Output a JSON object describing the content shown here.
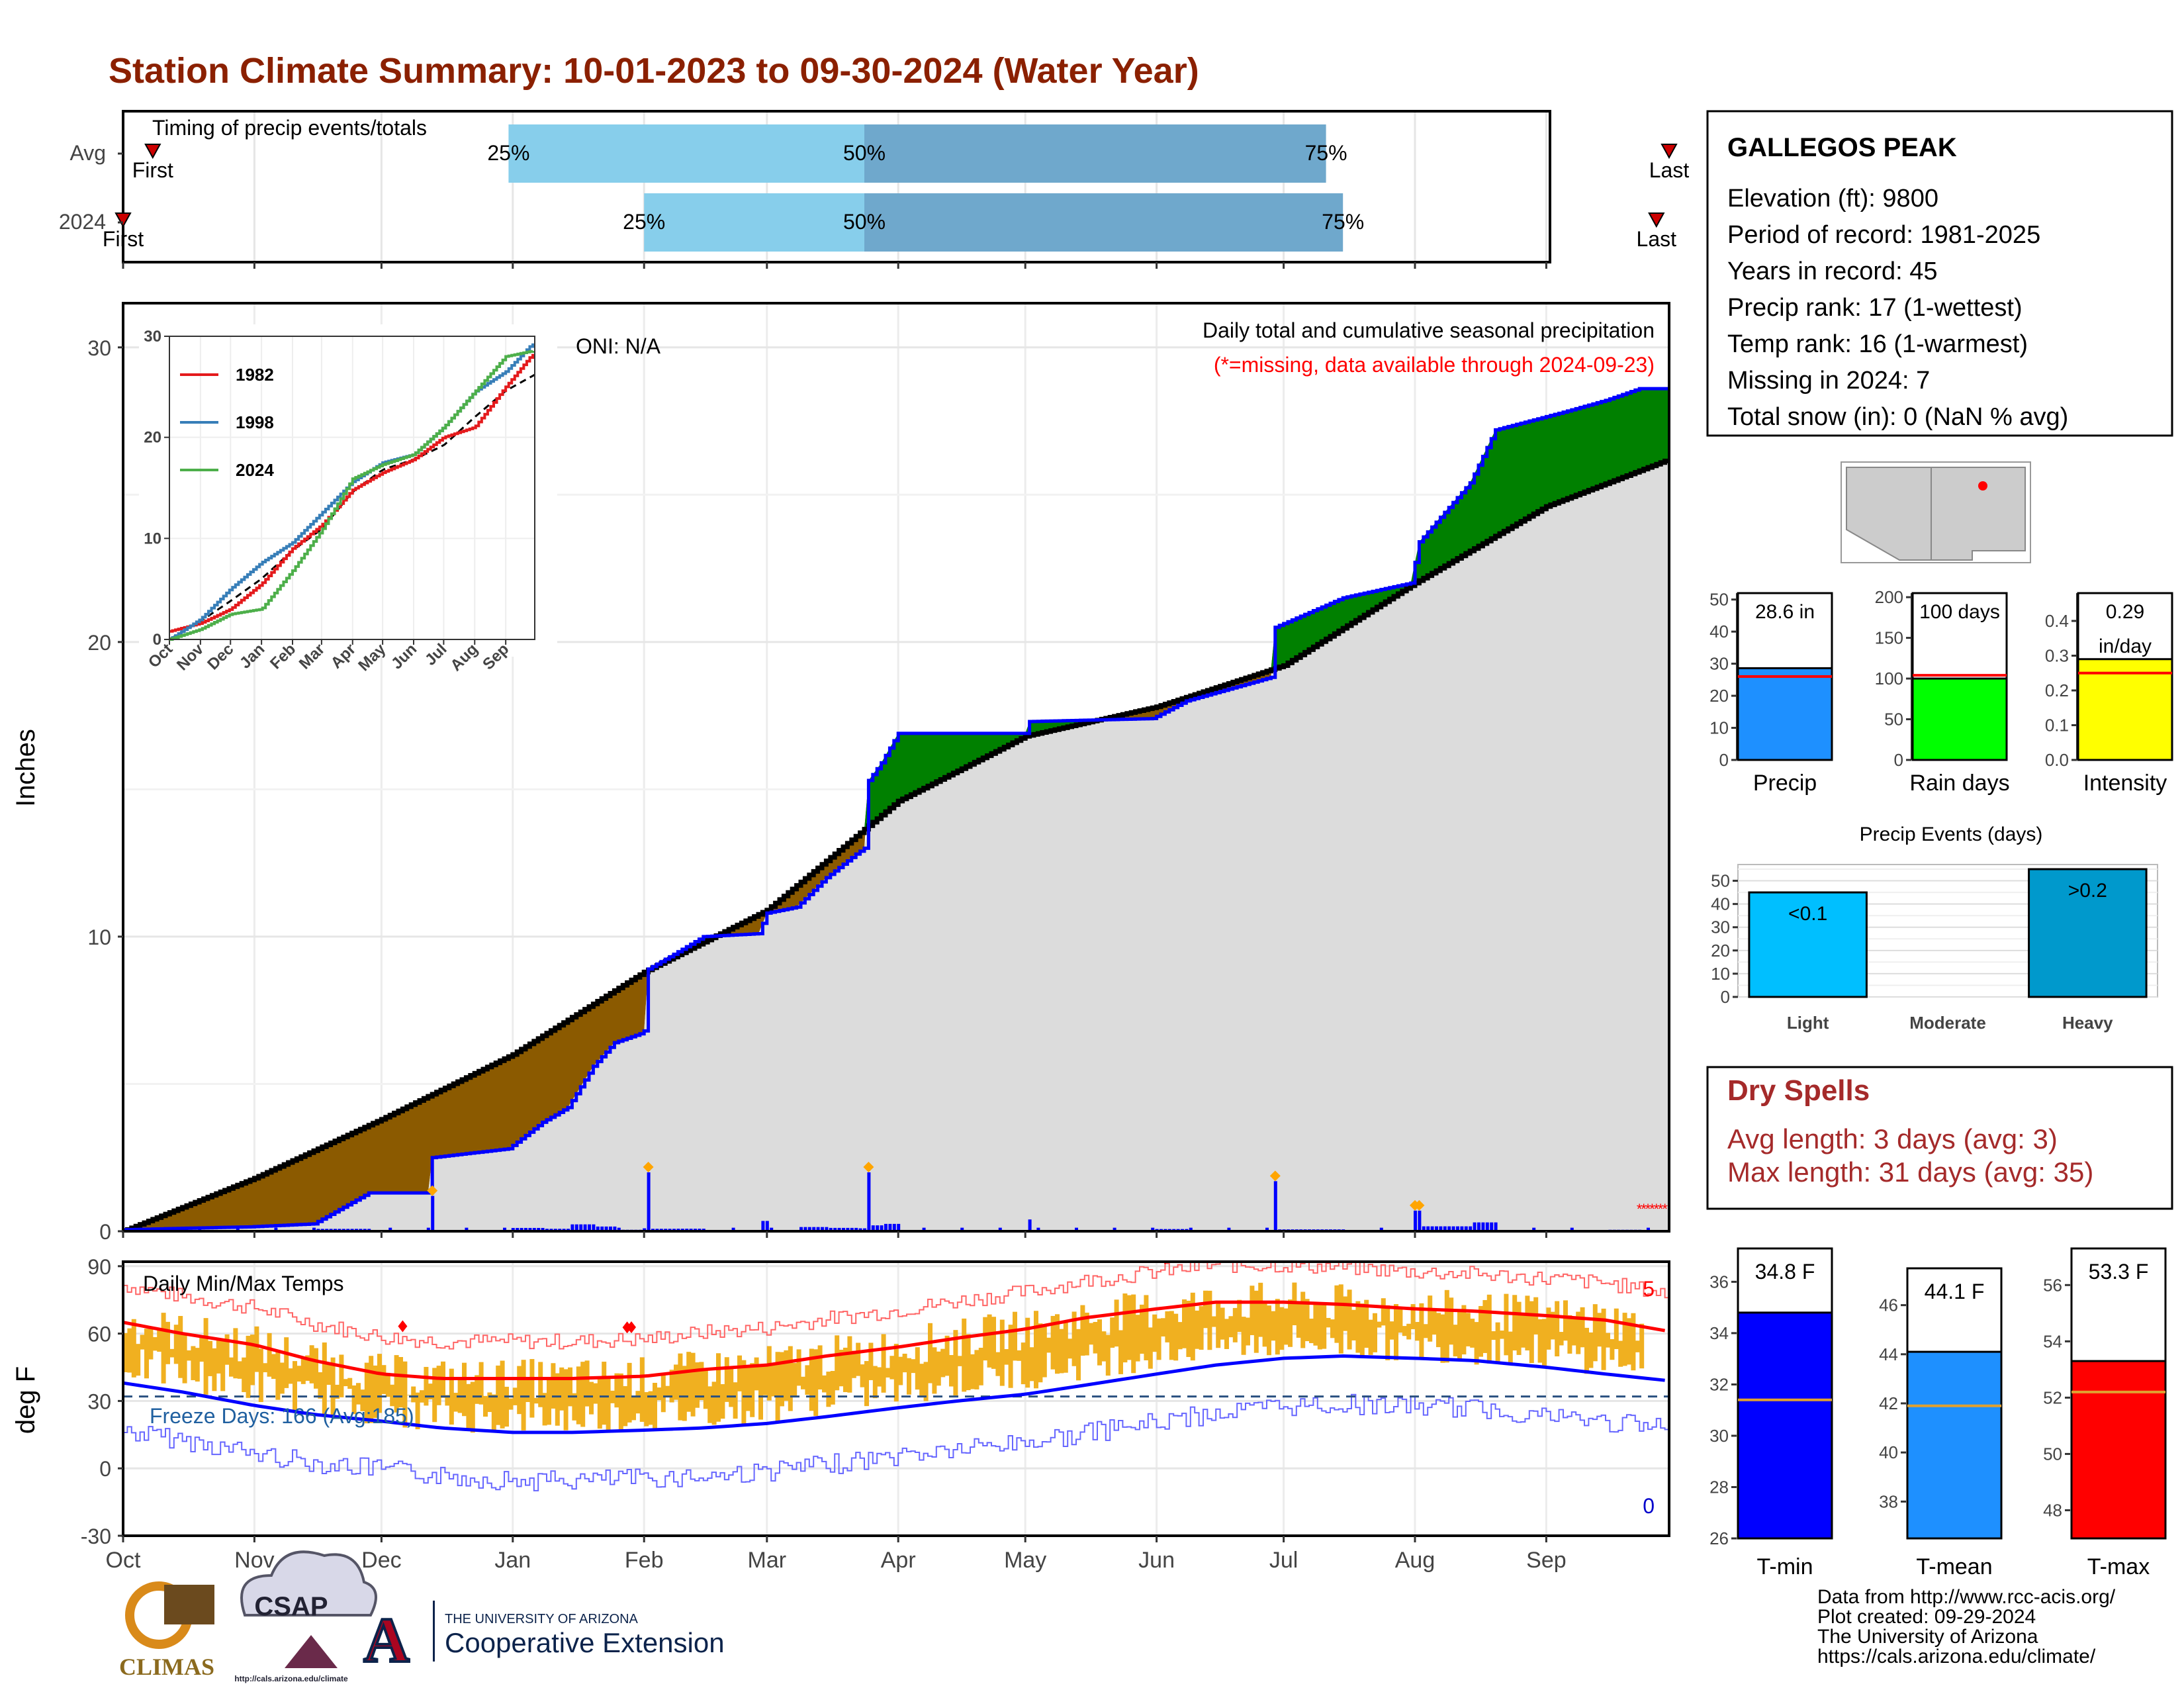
{
  "title": "Station Climate Summary: 10-01-2023 to 09-30-2024 (Water Year)",
  "colors": {
    "title": "#8b2000",
    "light_blue": "#87ceeb",
    "mid_blue": "#6fa8cc",
    "surplus": "#008000",
    "deficit": "#8b5a00",
    "precip_bar": "#0000ff",
    "normal_fill": "#dcdcdc",
    "temp_band": "#f0b020",
    "max_line": "#ff0000",
    "min_line": "#0000ff",
    "dry_spells": "#a52a2a"
  },
  "timing": {
    "title": "Timing of precip events/totals",
    "rows": [
      {
        "label": "Avg",
        "p25": "25%",
        "p50": "50%",
        "p75": "75%",
        "first": "First",
        "last": "Last",
        "first_date": "2023-10-08",
        "p25_date": "2023-12-31",
        "p50_date": "2024-03-24",
        "p75_date": "2024-07-11",
        "last_date": "2024-09-30"
      },
      {
        "label": "2024",
        "p25": "25%",
        "p50": "50%",
        "p75": "75%",
        "first": "First",
        "last": "Last",
        "first_date": "2023-10-01",
        "p25_date": "2024-02-01",
        "p50_date": "2024-03-24",
        "p75_date": "2024-07-15",
        "last_date": "2024-09-27"
      }
    ]
  },
  "precip": {
    "ylabel": "Inches",
    "oni": "ONI: N/A",
    "subtitle": "Daily total and cumulative seasonal precipitation",
    "missing_note": "(*=missing, data available through 2024-09-23)",
    "y_ticks": [
      "0",
      "10",
      "20",
      "30"
    ],
    "x_ticks": [
      "Oct",
      "Nov",
      "Dec",
      "Jan",
      "Feb",
      "Mar",
      "Apr",
      "May",
      "Jun",
      "Jul",
      "Aug",
      "Sep"
    ],
    "inset": {
      "y_ticks": [
        "0",
        "10",
        "20",
        "30"
      ],
      "x_ticks": [
        "Oct",
        "Nov",
        "Dec",
        "Jan",
        "Feb",
        "Mar",
        "Apr",
        "May",
        "Jun",
        "Jul",
        "Aug",
        "Sep"
      ],
      "legend": [
        {
          "name": "1982",
          "color": "#e41a1c"
        },
        {
          "name": "1998",
          "color": "#377eb8"
        },
        {
          "name": "2024",
          "color": "#4daf4a"
        }
      ]
    }
  },
  "temp": {
    "ylabel": "deg F",
    "title": "Daily Min/Max Temps",
    "freeze": "Freeze Days: 166 (Avg:185)",
    "record_high_count": "5",
    "record_low_count": "0",
    "y_ticks": [
      "90",
      "60",
      "30",
      "0",
      "-30"
    ],
    "x_ticks": [
      "Oct",
      "Nov",
      "Dec",
      "Jan",
      "Feb",
      "Mar",
      "Apr",
      "May",
      "Jun",
      "Jul",
      "Aug",
      "Sep"
    ]
  },
  "station": {
    "name": "GALLEGOS PEAK",
    "lines": [
      "Elevation (ft): 9800",
      "Period of record: 1981-2025",
      "Years in record: 45",
      "Precip rank: 17 (1-wettest)",
      "Temp rank: 16 (1-warmest)",
      "Missing in 2024: 7",
      "Total snow (in): 0 (NaN % avg)"
    ]
  },
  "summary_bars": [
    {
      "label": "Precip",
      "value_label": "28.6 in",
      "value": 28.6,
      "avg": 26,
      "ymax": 52,
      "ticks": [
        "0",
        "10",
        "20",
        "30",
        "40",
        "50"
      ],
      "tick_values": [
        0,
        10,
        20,
        30,
        40,
        50
      ],
      "color": "#1e90ff"
    },
    {
      "label": "Rain days",
      "value_label": "100 days",
      "value": 100,
      "avg": 104,
      "ymax": 205,
      "ticks": [
        "0",
        "50",
        "100",
        "150",
        "200"
      ],
      "tick_values": [
        0,
        50,
        100,
        150,
        200
      ],
      "color": "#00ff00"
    },
    {
      "label": "Intensity",
      "value_label": "0.29",
      "value_label2": "in/day",
      "value": 0.29,
      "avg": 0.25,
      "ymax": 0.48,
      "ticks": [
        "0.0",
        "0.1",
        "0.2",
        "0.3",
        "0.4"
      ],
      "tick_values": [
        0,
        0.1,
        0.2,
        0.3,
        0.4
      ],
      "color": "#ffff00"
    }
  ],
  "events": {
    "title": "Precip Events (days)",
    "ticks": [
      "0",
      "10",
      "20",
      "30",
      "40",
      "50"
    ],
    "tick_values": [
      0,
      10,
      20,
      30,
      40,
      50
    ],
    "ymax": 57,
    "bars": [
      {
        "category": "Light",
        "value": 45,
        "label": "<0.1",
        "color": "#00bfff"
      },
      {
        "category": "Moderate",
        "value": 0,
        "label": "",
        "color": "#1e90ff"
      },
      {
        "category": "Heavy",
        "value": 55,
        "label": ">0.2",
        "color": "#0099cc"
      }
    ]
  },
  "dry_spells": {
    "title": "Dry Spells",
    "avg": "Avg length: 3 days (avg: 3)",
    "max": "Max length: 31 days (avg: 35)"
  },
  "temp_bars": [
    {
      "label": "T-min",
      "value_label": "34.8 F",
      "value": 34.8,
      "avg": 31.4,
      "ymin": 26,
      "ymax": 37.3,
      "ticks": [
        "26",
        "28",
        "30",
        "32",
        "34",
        "36"
      ],
      "tick_values": [
        26,
        28,
        30,
        32,
        34,
        36
      ],
      "color": "#0000ff"
    },
    {
      "label": "T-mean",
      "value_label": "44.1 F",
      "value": 44.1,
      "avg": 41.9,
      "ymin": 36.5,
      "ymax": 47.5,
      "ticks": [
        "38",
        "40",
        "42",
        "44",
        "46"
      ],
      "tick_values": [
        38,
        40,
        42,
        44,
        46
      ],
      "color": "#1e90ff"
    },
    {
      "label": "T-max",
      "value_label": "53.3 F",
      "value": 53.3,
      "avg": 52.2,
      "ymin": 47,
      "ymax": 57.3,
      "ticks": [
        "48",
        "50",
        "52",
        "54",
        "56"
      ],
      "tick_values": [
        48,
        50,
        52,
        54,
        56
      ],
      "color": "#ff0000"
    }
  ],
  "footer": {
    "logos": {
      "climas": "CLIMAS",
      "csap": "CSAP",
      "csap_url": "http://cals.arizona.edu/climate",
      "ua_top": "THE UNIVERSITY OF ARIZONA",
      "ua_bottom": "Cooperative Extension"
    },
    "credits": [
      "Data from http://www.rcc-acis.org/",
      "Plot created: 09-29-2024",
      "The University of Arizona",
      "https://cals.arizona.edu/climate/"
    ]
  },
  "chart_data": [
    {
      "type": "bar",
      "title": "Timing of precip events/totals",
      "categories": [
        "Avg",
        "2024"
      ],
      "series": [
        {
          "name": "25%",
          "values": [
            "2023-12-31",
            "2024-02-01"
          ]
        },
        {
          "name": "50%",
          "values": [
            "2024-03-24",
            "2024-03-24"
          ]
        },
        {
          "name": "75%",
          "values": [
            "2024-07-11",
            "2024-07-15"
          ]
        }
      ]
    },
    {
      "type": "area",
      "title": "Daily total and cumulative seasonal precipitation",
      "ylabel": "Inches",
      "ylim": [
        0,
        31.5
      ],
      "x_range": [
        "2023-10-01",
        "2024-09-30"
      ],
      "series": [
        {
          "name": "",
          "points": [
            [
              "2023-10-01",
              0.05
            ],
            [
              "2023-10-15",
              0.1
            ],
            [
              "2023-10-31",
              0.15
            ],
            [
              "2023-11-15",
              0.25
            ],
            [
              "2023-11-28",
              1.3
            ],
            [
              "2023-11-29",
              1.3
            ],
            [
              "2023-12-12",
              1.3
            ],
            [
              "2023-12-13",
              2.5
            ],
            [
              "2023-12-31",
              2.8
            ],
            [
              "2024-01-08",
              3.7
            ],
            [
              "2024-01-14",
              4.2
            ],
            [
              "2024-01-20",
              5.6
            ],
            [
              "2024-01-25",
              6.4
            ],
            [
              "2024-01-31",
              6.7
            ],
            [
              "2024-02-01",
              6.8
            ],
            [
              "2024-02-02",
              8.9
            ],
            [
              "2024-02-08",
              9.4
            ],
            [
              "2024-02-15",
              10.0
            ],
            [
              "2024-02-28",
              10.1
            ],
            [
              "2024-03-01",
              10.8
            ],
            [
              "2024-03-08",
              11.0
            ],
            [
              "2024-03-15",
              12.0
            ],
            [
              "2024-03-22",
              12.8
            ],
            [
              "2024-03-24",
              13.0
            ],
            [
              "2024-03-25",
              15.3
            ],
            [
              "2024-03-28",
              15.9
            ],
            [
              "2024-04-01",
              16.9
            ],
            [
              "2024-05-01",
              16.9
            ],
            [
              "2024-05-02",
              17.3
            ],
            [
              "2024-05-31",
              17.4
            ],
            [
              "2024-06-08",
              18.0
            ],
            [
              "2024-06-28",
              18.8
            ],
            [
              "2024-06-29",
              20.5
            ],
            [
              "2024-07-15",
              21.5
            ],
            [
              "2024-07-31",
              22.0
            ],
            [
              "2024-08-02",
              23.4
            ],
            [
              "2024-08-14",
              25.4
            ],
            [
              "2024-08-20",
              27.2
            ],
            [
              "2024-09-05",
              27.8
            ],
            [
              "2024-09-15",
              28.2
            ],
            [
              "2024-09-23",
              28.6
            ],
            [
              "2024-09-30",
              28.6
            ]
          ]
        },
        {
          "name": "",
          "points": [
            [
              "2023-10-01",
              0
            ],
            [
              "2023-11-01",
              1.8
            ],
            [
              "2023-12-01",
              3.8
            ],
            [
              "2024-01-01",
              6.0
            ],
            [
              "2024-02-01",
              8.8
            ],
            [
              "2024-03-01",
              10.9
            ],
            [
              "2024-04-01",
              14.6
            ],
            [
              "2024-05-01",
              16.8
            ],
            [
              "2024-06-01",
              17.8
            ],
            [
              "2024-07-01",
              19.2
            ],
            [
              "2024-08-01",
              22.0
            ],
            [
              "2024-09-01",
              24.6
            ],
            [
              "2024-09-30",
              26.2
            ]
          ]
        }
      ]
    },
    {
      "type": "line",
      "title": "",
      "ylim": [
        0,
        30
      ],
      "series": [
        {
          "name": "1982",
          "points": [
            [
              "10-01",
              0.8
            ],
            [
              "11-01",
              1.6
            ],
            [
              "12-01",
              3.0
            ],
            [
              "01-01",
              5.5
            ],
            [
              "02-01",
              9.0
            ],
            [
              "03-01",
              11.3
            ],
            [
              "04-01",
              14.8
            ],
            [
              "05-01",
              16.5
            ],
            [
              "06-01",
              17.8
            ],
            [
              "07-01",
              20.0
            ],
            [
              "08-01",
              21.0
            ],
            [
              "09-01",
              25.0
            ],
            [
              "09-30",
              28.5
            ]
          ]
        },
        {
          "name": "1998",
          "points": [
            [
              "10-01",
              0
            ],
            [
              "11-01",
              2.0
            ],
            [
              "12-01",
              5.0
            ],
            [
              "01-01",
              7.6
            ],
            [
              "02-01",
              9.6
            ],
            [
              "03-01",
              12.5
            ],
            [
              "04-01",
              15.6
            ],
            [
              "05-01",
              17.5
            ],
            [
              "06-01",
              18.3
            ],
            [
              "07-01",
              21.0
            ],
            [
              "08-01",
              24.5
            ],
            [
              "09-01",
              26.5
            ],
            [
              "09-30",
              29.5
            ]
          ]
        },
        {
          "name": "2024",
          "points": [
            [
              "10-01",
              0
            ],
            [
              "11-01",
              1.0
            ],
            [
              "12-01",
              2.5
            ],
            [
              "01-01",
              3.0
            ],
            [
              "02-01",
              6.8
            ],
            [
              "03-01",
              10.8
            ],
            [
              "04-01",
              15.9
            ],
            [
              "05-01",
              17.3
            ],
            [
              "06-01",
              18.3
            ],
            [
              "07-01",
              21.0
            ],
            [
              "08-01",
              24.5
            ],
            [
              "09-01",
              28.0
            ],
            [
              "09-30",
              28.6
            ]
          ]
        }
      ]
    },
    {
      "type": "line",
      "title": "Daily Min/Max Temps",
      "ylabel": "deg F",
      "ylim": [
        -30,
        90
      ],
      "series": [
        {
          "name": "",
          "points": [
            [
              "10-01",
              65
            ],
            [
              "10-15",
              60
            ],
            [
              "11-01",
              55
            ],
            [
              "11-15",
              48
            ],
            [
              "12-01",
              42
            ],
            [
              "12-15",
              40
            ],
            [
              "01-01",
              40
            ],
            [
              "01-15",
              40
            ],
            [
              "02-01",
              41
            ],
            [
              "02-15",
              44
            ],
            [
              "03-01",
              46
            ],
            [
              "03-15",
              50
            ],
            [
              "04-01",
              54
            ],
            [
              "04-15",
              58
            ],
            [
              "05-01",
              62
            ],
            [
              "05-15",
              67
            ],
            [
              "06-01",
              71
            ],
            [
              "06-15",
              74
            ],
            [
              "07-01",
              74
            ],
            [
              "07-15",
              73
            ],
            [
              "08-01",
              71
            ],
            [
              "08-15",
              70
            ],
            [
              "09-01",
              68
            ],
            [
              "09-15",
              66
            ],
            [
              "09-30",
              61
            ]
          ]
        },
        {
          "name": "",
          "points": [
            [
              "10-01",
              38
            ],
            [
              "10-15",
              34
            ],
            [
              "11-01",
              28
            ],
            [
              "11-15",
              24
            ],
            [
              "12-01",
              21
            ],
            [
              "12-15",
              18
            ],
            [
              "01-01",
              16
            ],
            [
              "01-15",
              16
            ],
            [
              "02-01",
              17
            ],
            [
              "02-15",
              18
            ],
            [
              "03-01",
              20
            ],
            [
              "03-15",
              23
            ],
            [
              "04-01",
              27
            ],
            [
              "04-15",
              30
            ],
            [
              "05-01",
              33
            ],
            [
              "05-15",
              37
            ],
            [
              "06-01",
              42
            ],
            [
              "06-15",
              46
            ],
            [
              "07-01",
              49
            ],
            [
              "07-15",
              50
            ],
            [
              "08-01",
              49
            ],
            [
              "08-15",
              48
            ],
            [
              "09-01",
              45
            ],
            [
              "09-15",
              42
            ],
            [
              "09-30",
              39
            ]
          ]
        }
      ]
    },
    {
      "type": "bar",
      "categories": [
        "Precip",
        "Rain days",
        "Intensity"
      ],
      "values": [
        28.6,
        100,
        0.29
      ],
      "averages": [
        26,
        104,
        0.25
      ]
    },
    {
      "type": "bar",
      "title": "Precip Events (days)",
      "categories": [
        "Light",
        "Moderate",
        "Heavy"
      ],
      "values": [
        45,
        0,
        55
      ]
    },
    {
      "type": "bar",
      "categories": [
        "T-min",
        "T-mean",
        "T-max"
      ],
      "values": [
        34.8,
        44.1,
        53.3
      ],
      "averages": [
        31.4,
        41.9,
        52.2
      ]
    }
  ]
}
